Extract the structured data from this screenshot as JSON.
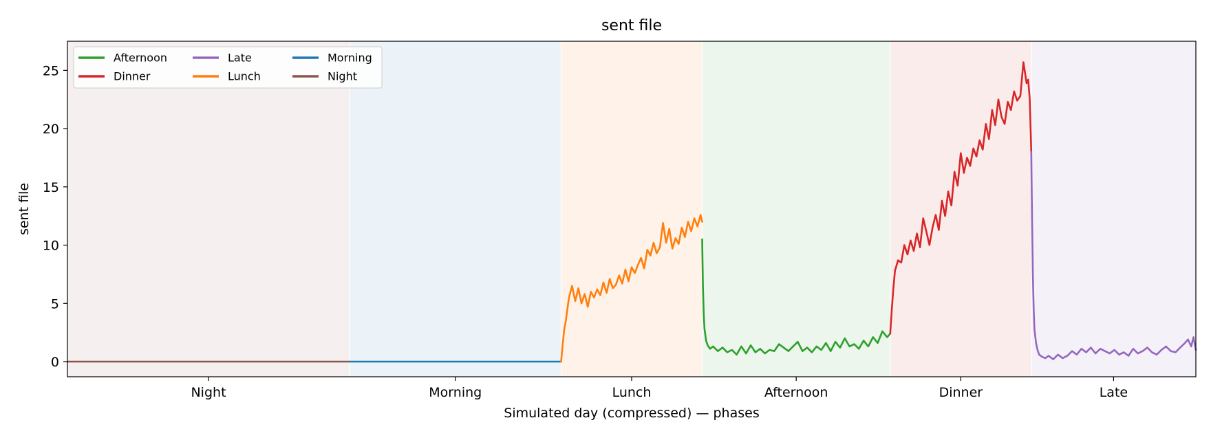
{
  "chart_data": {
    "type": "line",
    "title": "sent file",
    "xlabel": "Simulated day (compressed) — phases",
    "ylabel": "sent file",
    "xlim": [
      0,
      1440
    ],
    "ylim": [
      -1.3,
      27.5
    ],
    "yticks": [
      0,
      5,
      10,
      15,
      20,
      25
    ],
    "grid": false,
    "legend": {
      "placement": "top-left",
      "columns": 3
    },
    "phases": [
      {
        "name": "Night",
        "start": 0,
        "end": 360,
        "color": "#8c564b"
      },
      {
        "name": "Morning",
        "start": 360,
        "end": 630,
        "color": "#1f77b4"
      },
      {
        "name": "Lunch",
        "start": 630,
        "end": 810,
        "color": "#ff7f0e"
      },
      {
        "name": "Afternoon",
        "start": 810,
        "end": 1050,
        "color": "#2ca02c"
      },
      {
        "name": "Dinner",
        "start": 1050,
        "end": 1230,
        "color": "#d62728"
      },
      {
        "name": "Late",
        "start": 1230,
        "end": 1440,
        "color": "#9467bd"
      }
    ],
    "series": [
      {
        "name": "Night",
        "color": "#8c564b",
        "x": [
          0,
          360
        ],
        "y": [
          0,
          0
        ]
      },
      {
        "name": "Morning",
        "color": "#1f77b4",
        "x": [
          360,
          630
        ],
        "y": [
          0,
          0
        ]
      },
      {
        "name": "Lunch",
        "color": "#ff7f0e",
        "x": [
          630,
          632,
          634,
          636,
          640,
          644,
          648,
          652,
          656,
          660,
          664,
          668,
          672,
          676,
          680,
          684,
          688,
          692,
          696,
          700,
          704,
          708,
          712,
          716,
          720,
          724,
          728,
          732,
          736,
          740,
          744,
          748,
          752,
          756,
          760,
          764,
          768,
          772,
          776,
          780,
          784,
          788,
          792,
          796,
          800,
          804,
          808,
          810
        ],
        "y": [
          0,
          1.5,
          2.8,
          3.5,
          5.5,
          6.5,
          5.2,
          6.3,
          5.0,
          5.8,
          4.7,
          6.0,
          5.5,
          6.2,
          5.7,
          6.8,
          5.9,
          7.1,
          6.3,
          6.6,
          7.4,
          6.7,
          7.9,
          6.9,
          8.1,
          7.6,
          8.3,
          8.9,
          8.0,
          9.6,
          9.1,
          10.2,
          9.3,
          9.8,
          11.9,
          10.2,
          11.4,
          9.7,
          10.6,
          10.1,
          11.5,
          10.7,
          12.0,
          11.2,
          12.3,
          11.6,
          12.6,
          12.0
        ]
      },
      {
        "name": "Afternoon",
        "color": "#2ca02c",
        "x": [
          810,
          811,
          812,
          813,
          815,
          817,
          820,
          824,
          830,
          836,
          842,
          848,
          854,
          860,
          866,
          872,
          878,
          884,
          890,
          896,
          902,
          908,
          914,
          920,
          926,
          932,
          938,
          944,
          950,
          956,
          962,
          968,
          974,
          980,
          986,
          992,
          998,
          1004,
          1010,
          1016,
          1022,
          1028,
          1034,
          1040,
          1046,
          1050
        ],
        "y": [
          10.5,
          6.5,
          4.0,
          2.8,
          1.8,
          1.4,
          1.1,
          1.3,
          0.9,
          1.2,
          0.8,
          1.0,
          0.6,
          1.3,
          0.7,
          1.4,
          0.8,
          1.1,
          0.7,
          1.0,
          0.9,
          1.5,
          1.2,
          0.9,
          1.3,
          1.7,
          0.9,
          1.2,
          0.8,
          1.3,
          1.0,
          1.6,
          0.9,
          1.7,
          1.2,
          2.0,
          1.3,
          1.5,
          1.1,
          1.8,
          1.3,
          2.1,
          1.6,
          2.6,
          2.1,
          2.4
        ]
      },
      {
        "name": "Dinner",
        "color": "#d62728",
        "x": [
          1050,
          1052,
          1054,
          1056,
          1060,
          1064,
          1068,
          1072,
          1076,
          1080,
          1084,
          1088,
          1092,
          1096,
          1100,
          1104,
          1108,
          1112,
          1116,
          1120,
          1124,
          1128,
          1132,
          1136,
          1140,
          1144,
          1148,
          1152,
          1156,
          1160,
          1164,
          1168,
          1172,
          1176,
          1180,
          1184,
          1188,
          1192,
          1196,
          1200,
          1204,
          1208,
          1212,
          1216,
          1220,
          1224,
          1226,
          1228,
          1230
        ],
        "y": [
          2.4,
          4.5,
          6.3,
          7.8,
          8.7,
          8.5,
          10.0,
          9.2,
          10.4,
          9.5,
          11.0,
          9.8,
          12.3,
          11.2,
          10.0,
          11.5,
          12.6,
          11.3,
          13.8,
          12.5,
          14.6,
          13.4,
          16.3,
          15.1,
          17.9,
          16.2,
          17.5,
          16.8,
          18.3,
          17.6,
          19.0,
          18.2,
          20.4,
          19.1,
          21.6,
          20.3,
          22.5,
          21.0,
          20.4,
          22.3,
          21.6,
          23.2,
          22.4,
          22.8,
          25.7,
          23.9,
          24.2,
          22.5,
          18.0
        ]
      },
      {
        "name": "Late",
        "color": "#9467bd",
        "x": [
          1230,
          1231,
          1232,
          1233,
          1234,
          1236,
          1238,
          1240,
          1244,
          1248,
          1252,
          1258,
          1264,
          1270,
          1276,
          1282,
          1288,
          1294,
          1300,
          1306,
          1312,
          1318,
          1324,
          1330,
          1336,
          1342,
          1348,
          1354,
          1360,
          1366,
          1372,
          1378,
          1384,
          1390,
          1396,
          1402,
          1408,
          1414,
          1420,
          1426,
          1430,
          1434,
          1437,
          1440
        ],
        "y": [
          18.0,
          12.0,
          7.5,
          4.5,
          2.8,
          1.6,
          1.0,
          0.6,
          0.4,
          0.3,
          0.5,
          0.2,
          0.6,
          0.3,
          0.5,
          0.9,
          0.6,
          1.1,
          0.8,
          1.2,
          0.7,
          1.1,
          0.9,
          0.7,
          1.0,
          0.6,
          0.8,
          0.5,
          1.1,
          0.7,
          0.9,
          1.2,
          0.8,
          0.6,
          1.0,
          1.3,
          0.9,
          0.8,
          1.2,
          1.6,
          1.9,
          1.3,
          2.1,
          1.0
        ]
      }
    ]
  }
}
